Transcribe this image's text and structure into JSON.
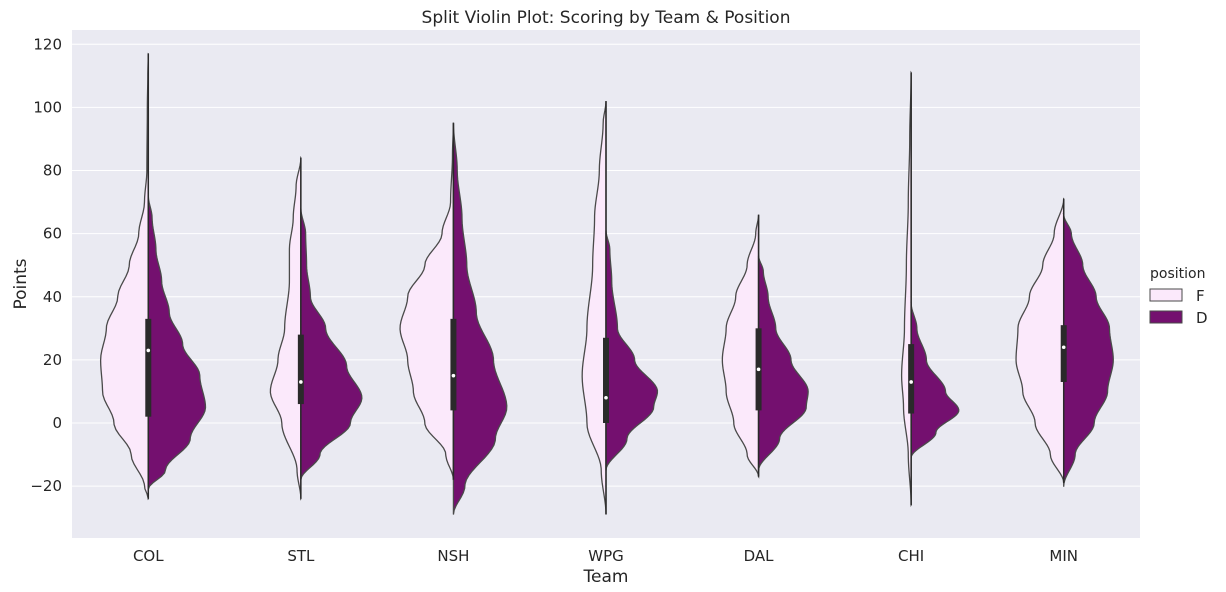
{
  "chart_data": {
    "type": "violin",
    "title": "Split Violin Plot: Scoring by Team & Position",
    "xlabel": "Team",
    "ylabel": "Points",
    "ylim": [
      -36,
      126
    ],
    "yticks": [
      -20,
      0,
      20,
      40,
      60,
      80,
      100,
      120
    ],
    "grid": true,
    "legend": {
      "title": "position",
      "placement": "right"
    },
    "colors": {
      "F": "#fbe9fb",
      "D": "#74106f",
      "outline": "#4a4a4a",
      "background": "#eaeaf2",
      "box": "#2a2a2a"
    },
    "categories": [
      "COL",
      "STL",
      "NSH",
      "WPG",
      "DAL",
      "CHI",
      "MIN"
    ],
    "series": [
      {
        "name": "F",
        "violins": [
          {
            "min": -24,
            "max": 117,
            "q1": 2,
            "median": 23,
            "q3": 33,
            "profile": [
              [
                -24,
                0
              ],
              [
                -20,
                0.04
              ],
              [
                -10,
                0.18
              ],
              [
                0,
                0.36
              ],
              [
                10,
                0.48
              ],
              [
                20,
                0.5
              ],
              [
                30,
                0.44
              ],
              [
                40,
                0.32
              ],
              [
                50,
                0.2
              ],
              [
                60,
                0.1
              ],
              [
                70,
                0.04
              ],
              [
                80,
                0.015
              ],
              [
                100,
                0.01
              ],
              [
                110,
                0.005
              ],
              [
                117,
                0
              ]
            ]
          },
          {
            "min": -24,
            "max": 84,
            "q1": 6,
            "median": 13,
            "q3": 28,
            "profile": [
              [
                -24,
                0
              ],
              [
                -15,
                0.04
              ],
              [
                0,
                0.2
              ],
              [
                10,
                0.32
              ],
              [
                20,
                0.24
              ],
              [
                30,
                0.17
              ],
              [
                45,
                0.12
              ],
              [
                55,
                0.12
              ],
              [
                65,
                0.08
              ],
              [
                75,
                0.05
              ],
              [
                84,
                0
              ]
            ]
          },
          {
            "min": -18,
            "max": 95,
            "q1": 4,
            "median": 15,
            "q3": 33,
            "profile": [
              [
                -18,
                0
              ],
              [
                -10,
                0.08
              ],
              [
                0,
                0.3
              ],
              [
                10,
                0.42
              ],
              [
                20,
                0.48
              ],
              [
                30,
                0.56
              ],
              [
                40,
                0.48
              ],
              [
                50,
                0.3
              ],
              [
                60,
                0.12
              ],
              [
                70,
                0.03
              ],
              [
                85,
                0.01
              ],
              [
                95,
                0
              ]
            ]
          },
          {
            "min": -29,
            "max": 102,
            "q1": 0,
            "median": 8,
            "q3": 27,
            "profile": [
              [
                -29,
                0
              ],
              [
                -15,
                0.05
              ],
              [
                0,
                0.2
              ],
              [
                15,
                0.25
              ],
              [
                30,
                0.2
              ],
              [
                50,
                0.14
              ],
              [
                65,
                0.12
              ],
              [
                80,
                0.07
              ],
              [
                95,
                0.03
              ],
              [
                102,
                0
              ]
            ]
          },
          {
            "min": -17,
            "max": 66,
            "q1": 4,
            "median": 17,
            "q3": 30,
            "profile": [
              [
                -17,
                0
              ],
              [
                -10,
                0.12
              ],
              [
                0,
                0.26
              ],
              [
                10,
                0.34
              ],
              [
                20,
                0.38
              ],
              [
                30,
                0.34
              ],
              [
                40,
                0.24
              ],
              [
                50,
                0.12
              ],
              [
                60,
                0.03
              ],
              [
                66,
                0
              ]
            ]
          },
          {
            "min": -26,
            "max": 111,
            "q1": 3,
            "median": 13,
            "q3": 25,
            "profile": [
              [
                -26,
                0
              ],
              [
                -10,
                0.03
              ],
              [
                5,
                0.08
              ],
              [
                15,
                0.1
              ],
              [
                30,
                0.07
              ],
              [
                50,
                0.05
              ],
              [
                70,
                0.03
              ],
              [
                90,
                0.015
              ],
              [
                111,
                0
              ]
            ]
          },
          {
            "min": -19,
            "max": 71,
            "q1": 13,
            "median": 24,
            "q3": 31,
            "profile": [
              [
                -19,
                0
              ],
              [
                -10,
                0.14
              ],
              [
                0,
                0.3
              ],
              [
                10,
                0.43
              ],
              [
                20,
                0.5
              ],
              [
                30,
                0.48
              ],
              [
                40,
                0.36
              ],
              [
                50,
                0.22
              ],
              [
                60,
                0.1
              ],
              [
                71,
                0
              ]
            ]
          }
        ]
      },
      {
        "name": "D",
        "violins": [
          {
            "min": -21,
            "max": 72,
            "q1": 2,
            "median": 23,
            "q3": 33,
            "profile": [
              [
                -21,
                0
              ],
              [
                -15,
                0.18
              ],
              [
                -5,
                0.44
              ],
              [
                5,
                0.6
              ],
              [
                15,
                0.54
              ],
              [
                25,
                0.36
              ],
              [
                35,
                0.22
              ],
              [
                45,
                0.14
              ],
              [
                55,
                0.08
              ],
              [
                65,
                0.04
              ],
              [
                72,
                0
              ]
            ]
          },
          {
            "min": -18,
            "max": 68,
            "q1": 6,
            "median": 13,
            "q3": 28,
            "profile": [
              [
                -18,
                0
              ],
              [
                -10,
                0.2
              ],
              [
                0,
                0.52
              ],
              [
                8,
                0.64
              ],
              [
                18,
                0.48
              ],
              [
                30,
                0.26
              ],
              [
                40,
                0.1
              ],
              [
                50,
                0.06
              ],
              [
                60,
                0.05
              ],
              [
                68,
                0
              ]
            ]
          },
          {
            "min": -29,
            "max": 95,
            "q1": 4,
            "median": 15,
            "q3": 33,
            "profile": [
              [
                -29,
                0
              ],
              [
                -20,
                0.12
              ],
              [
                -5,
                0.44
              ],
              [
                5,
                0.56
              ],
              [
                20,
                0.42
              ],
              [
                35,
                0.24
              ],
              [
                50,
                0.14
              ],
              [
                65,
                0.09
              ],
              [
                80,
                0.04
              ],
              [
                95,
                0
              ]
            ]
          },
          {
            "min": -15,
            "max": 61,
            "q1": 0,
            "median": 8,
            "q3": 27,
            "profile": [
              [
                -15,
                0
              ],
              [
                -5,
                0.22
              ],
              [
                5,
                0.5
              ],
              [
                10,
                0.54
              ],
              [
                20,
                0.3
              ],
              [
                30,
                0.12
              ],
              [
                45,
                0.06
              ],
              [
                55,
                0.04
              ],
              [
                61,
                0
              ]
            ]
          },
          {
            "min": -15,
            "max": 53,
            "q1": 4,
            "median": 17,
            "q3": 30,
            "profile": [
              [
                -15,
                0
              ],
              [
                -5,
                0.22
              ],
              [
                5,
                0.5
              ],
              [
                10,
                0.52
              ],
              [
                20,
                0.34
              ],
              [
                30,
                0.18
              ],
              [
                40,
                0.1
              ],
              [
                48,
                0.05
              ],
              [
                53,
                0
              ]
            ]
          },
          {
            "min": -11,
            "max": 38,
            "q1": 3,
            "median": 13,
            "q3": 25,
            "profile": [
              [
                -11,
                0
              ],
              [
                -3,
                0.26
              ],
              [
                4,
                0.5
              ],
              [
                10,
                0.36
              ],
              [
                20,
                0.16
              ],
              [
                30,
                0.06
              ],
              [
                38,
                0
              ]
            ]
          },
          {
            "min": -20,
            "max": 66,
            "q1": 13,
            "median": 24,
            "q3": 31,
            "profile": [
              [
                -20,
                0
              ],
              [
                -10,
                0.12
              ],
              [
                0,
                0.32
              ],
              [
                10,
                0.46
              ],
              [
                20,
                0.52
              ],
              [
                30,
                0.48
              ],
              [
                40,
                0.34
              ],
              [
                50,
                0.2
              ],
              [
                60,
                0.08
              ],
              [
                66,
                0
              ]
            ]
          }
        ]
      }
    ]
  }
}
